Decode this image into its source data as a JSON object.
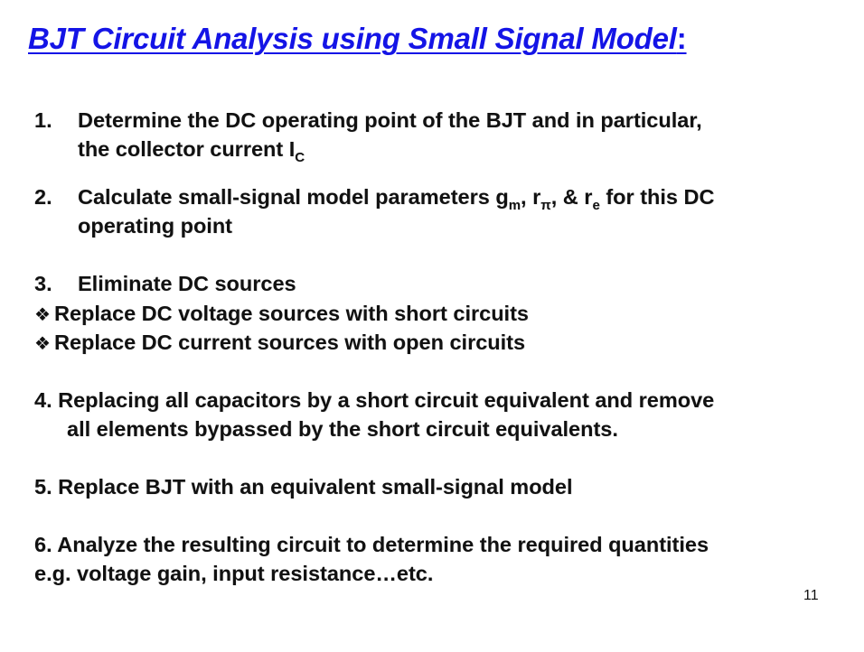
{
  "title": {
    "text": "BJT Circuit  Analysis using Small Signal Model",
    "suffix": ":"
  },
  "steps": {
    "s1": {
      "number": "1.",
      "line1": "Determine the DC operating point of the BJT and in particular,",
      "line2": "the collector current I",
      "line2_sub": "C"
    },
    "s2": {
      "number": "2.",
      "line1_a": "Calculate small-signal model parameters g",
      "sub_m": "m",
      "line1_b": ", r",
      "sub_pi": "π",
      "line1_c": ", & r",
      "sub_e": "e",
      "line1_d": " for this DC",
      "line2": "operating point"
    },
    "s3": {
      "number": "3.",
      "text": "Eliminate DC sources",
      "bullet_glyph": "❖",
      "bullets": [
        "Replace DC voltage sources with short circuits",
        "Replace DC current sources with open circuits"
      ]
    },
    "s4": {
      "line1": "4.  Replacing all capacitors by a short circuit equivalent and remove",
      "line2": "all elements bypassed by the short circuit equivalents."
    },
    "s5": {
      "text": "5.  Replace BJT with an equivalent small-signal model"
    },
    "s6": {
      "line1": "6.  Analyze the resulting circuit to determine the required quantities",
      "line2": "e.g. voltage gain, input resistance…etc."
    }
  },
  "page_number": "11"
}
